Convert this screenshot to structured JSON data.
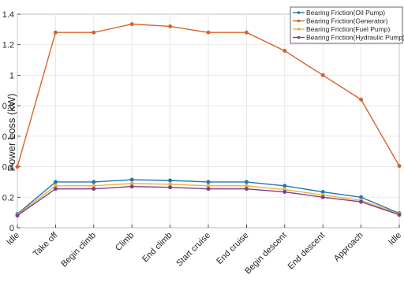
{
  "chart_data": {
    "type": "line",
    "ylabel": "Power Loss (kW)",
    "xlabel": "",
    "ylim": [
      0,
      1.4
    ],
    "yticks": [
      "0",
      "0.2",
      "0.4",
      "0.6",
      "0.8",
      "1",
      "1.2",
      "1.4"
    ],
    "grid": true,
    "legend_position": "top-right",
    "categories": [
      "Idle",
      "Take off",
      "Begin climb",
      "Climb",
      "End climb",
      "Start cruise",
      "End cruise",
      "Begin descent",
      "End descent",
      "Approach",
      "Idle"
    ],
    "series": [
      {
        "name": "Bearing Friction(Oil Pump)",
        "color": "#1f77b4",
        "values": [
          0.09,
          0.3,
          0.3,
          0.315,
          0.31,
          0.3,
          0.3,
          0.275,
          0.235,
          0.2,
          0.095
        ]
      },
      {
        "name": "Bearing Friction(Generator)",
        "color": "#d9622b",
        "values": [
          0.4,
          1.28,
          1.28,
          1.335,
          1.32,
          1.28,
          1.28,
          1.16,
          1.0,
          0.84,
          0.405
        ]
      },
      {
        "name": "Bearing Friction(Fuel Pump)",
        "color": "#e8b23a",
        "values": [
          0.085,
          0.275,
          0.275,
          0.29,
          0.285,
          0.275,
          0.275,
          0.25,
          0.215,
          0.18,
          0.09
        ]
      },
      {
        "name": "Bearing Friction(Hydraulic Pump)",
        "color": "#7e3f8f",
        "values": [
          0.08,
          0.255,
          0.255,
          0.27,
          0.265,
          0.255,
          0.255,
          0.235,
          0.2,
          0.17,
          0.085
        ]
      }
    ]
  }
}
